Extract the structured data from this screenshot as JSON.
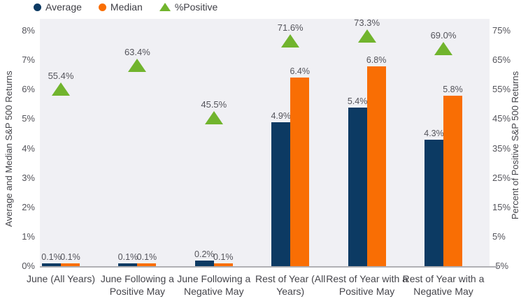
{
  "legend": {
    "items": [
      {
        "label": "Average",
        "marker": "circle",
        "color": "#0C3A63"
      },
      {
        "label": "Median",
        "marker": "circle",
        "color": "#F96E04"
      },
      {
        "label": "%Positive",
        "marker": "triangle",
        "color": "#71B42D"
      }
    ]
  },
  "chart_data": {
    "type": "bar",
    "title": "",
    "categories": [
      "June (All Years)",
      "June Following a Positive May",
      "June Following a Negative May",
      "Rest of Year (All Years)",
      "Rest of Year with a Positive May",
      "Rest of Year with a Negative May"
    ],
    "series": [
      {
        "name": "Average",
        "type": "bar",
        "axis": "left",
        "color": "#0C3A63",
        "values": [
          0.1,
          0.1,
          0.2,
          4.9,
          5.4,
          4.3
        ],
        "labels": [
          "0.1%",
          "0.1%",
          "0.2%",
          "4.9%",
          "5.4%",
          "4.3%"
        ]
      },
      {
        "name": "Median",
        "type": "bar",
        "axis": "left",
        "color": "#F96E04",
        "values": [
          0.1,
          0.1,
          0.1,
          6.4,
          6.8,
          5.8
        ],
        "labels": [
          "0.1%",
          "0.1%",
          "0.1%",
          "6.4%",
          "6.8%",
          "5.8%"
        ]
      },
      {
        "name": "%Positive",
        "type": "scatter-triangle",
        "axis": "right",
        "color": "#71B42D",
        "values": [
          55.4,
          63.4,
          45.5,
          71.6,
          73.3,
          69.0
        ],
        "labels": [
          "55.4%",
          "63.4%",
          "45.5%",
          "71.6%",
          "73.3%",
          "69.0%"
        ]
      }
    ],
    "left_axis": {
      "label": "Average and Median S&P 500 Returns",
      "ylim": [
        0,
        8
      ],
      "ticks": [
        0,
        1,
        2,
        3,
        4,
        5,
        6,
        7,
        8
      ],
      "tick_labels": [
        "0%",
        "1%",
        "2%",
        "3%",
        "4%",
        "5%",
        "6%",
        "7%",
        "8%"
      ]
    },
    "right_axis": {
      "label": "Percent of Positive S&P 500 Returns",
      "ylim": [
        -5,
        75
      ],
      "ticks": [
        -5,
        5,
        15,
        25,
        35,
        45,
        55,
        65,
        75
      ],
      "tick_labels": [
        "-5%",
        "5%",
        "15%",
        "25%",
        "35%",
        "45%",
        "55%",
        "65%",
        "75%"
      ]
    },
    "grid": false,
    "legend_position": "top-left",
    "plot_background": "#F0F0F4"
  }
}
